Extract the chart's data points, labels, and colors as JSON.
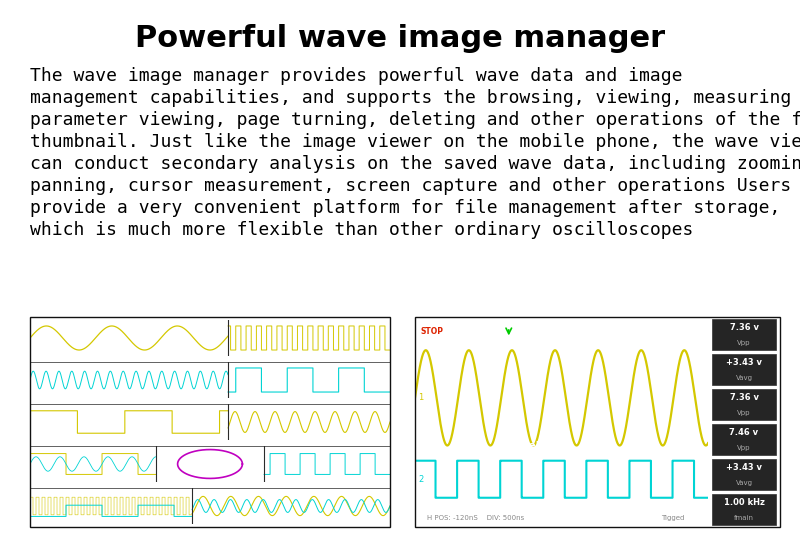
{
  "title": "Powerful wave image manager",
  "body_lines": [
    "The wave image manager provides powerful wave data and image",
    "management capabilities, and supports the browsing, viewing, measuring",
    "parameter viewing, page turning, deleting and other operations of the file",
    "thumbnail. Just like the image viewer on the mobile phone, the wave viewer",
    "can conduct secondary analysis on the saved wave data, including zooming,",
    "panning, cursor measurement, screen capture and other operations Users",
    "provide a very convenient platform for file management after storage,",
    "which is much more flexible than other ordinary oscilloscopes"
  ],
  "bg_color": "#ffffff",
  "title_color": "#000000",
  "body_color": "#000000",
  "title_fontsize": 22,
  "body_fontsize": 13,
  "osc_bg": "#000000",
  "yellow_color": "#d4c800",
  "cyan_color": "#00d4d4",
  "magenta_color": "#c000c0",
  "red_color": "#cc0000"
}
